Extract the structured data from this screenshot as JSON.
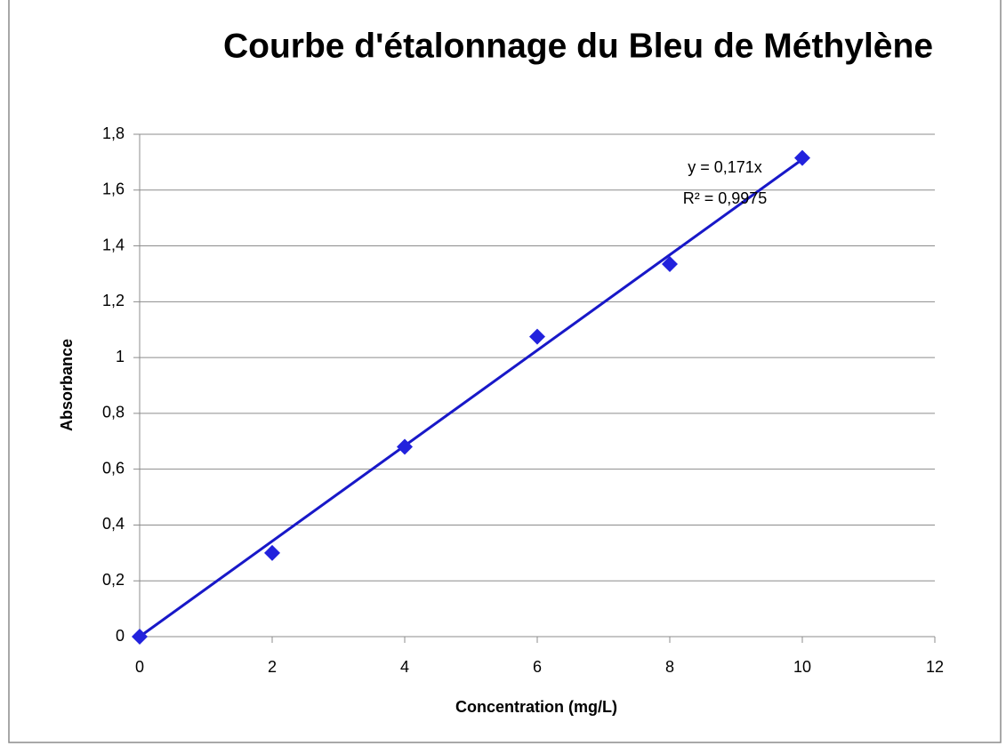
{
  "chart_data": {
    "type": "scatter",
    "title": "Courbe d'étalonnage du Bleu de Méthylène",
    "x_label": "Concentration (mg/L)",
    "y_label": "Absorbance",
    "series": [
      {
        "name": "Absorbance",
        "color": "#2222dd",
        "x": [
          0,
          2,
          4,
          6,
          8,
          10
        ],
        "values": [
          0,
          0.3,
          0.68,
          1.075,
          1.335,
          1.715
        ]
      }
    ],
    "trendline": {
      "slope": 0.171,
      "color": "#1818c8",
      "equation": "y = 0,171x",
      "r2": "R² = 0,9975"
    },
    "xlim": [
      0,
      12
    ],
    "xticks": [
      0,
      2,
      4,
      6,
      8,
      10,
      12
    ],
    "ylim": [
      0,
      1.8
    ],
    "yticks": [
      0,
      {
        "value": 0.2,
        "label": "0,2"
      },
      {
        "value": 0.4,
        "label": "0,4"
      },
      {
        "value": 0.6,
        "label": "0,6"
      },
      {
        "value": 0.8,
        "label": "0,8"
      },
      1,
      {
        "value": 1.2,
        "label": "1,2"
      },
      {
        "value": 1.4,
        "label": "1,4"
      },
      {
        "value": 1.6,
        "label": "1,6"
      },
      {
        "value": 1.8,
        "label": "1,8"
      }
    ],
    "grid": true
  }
}
